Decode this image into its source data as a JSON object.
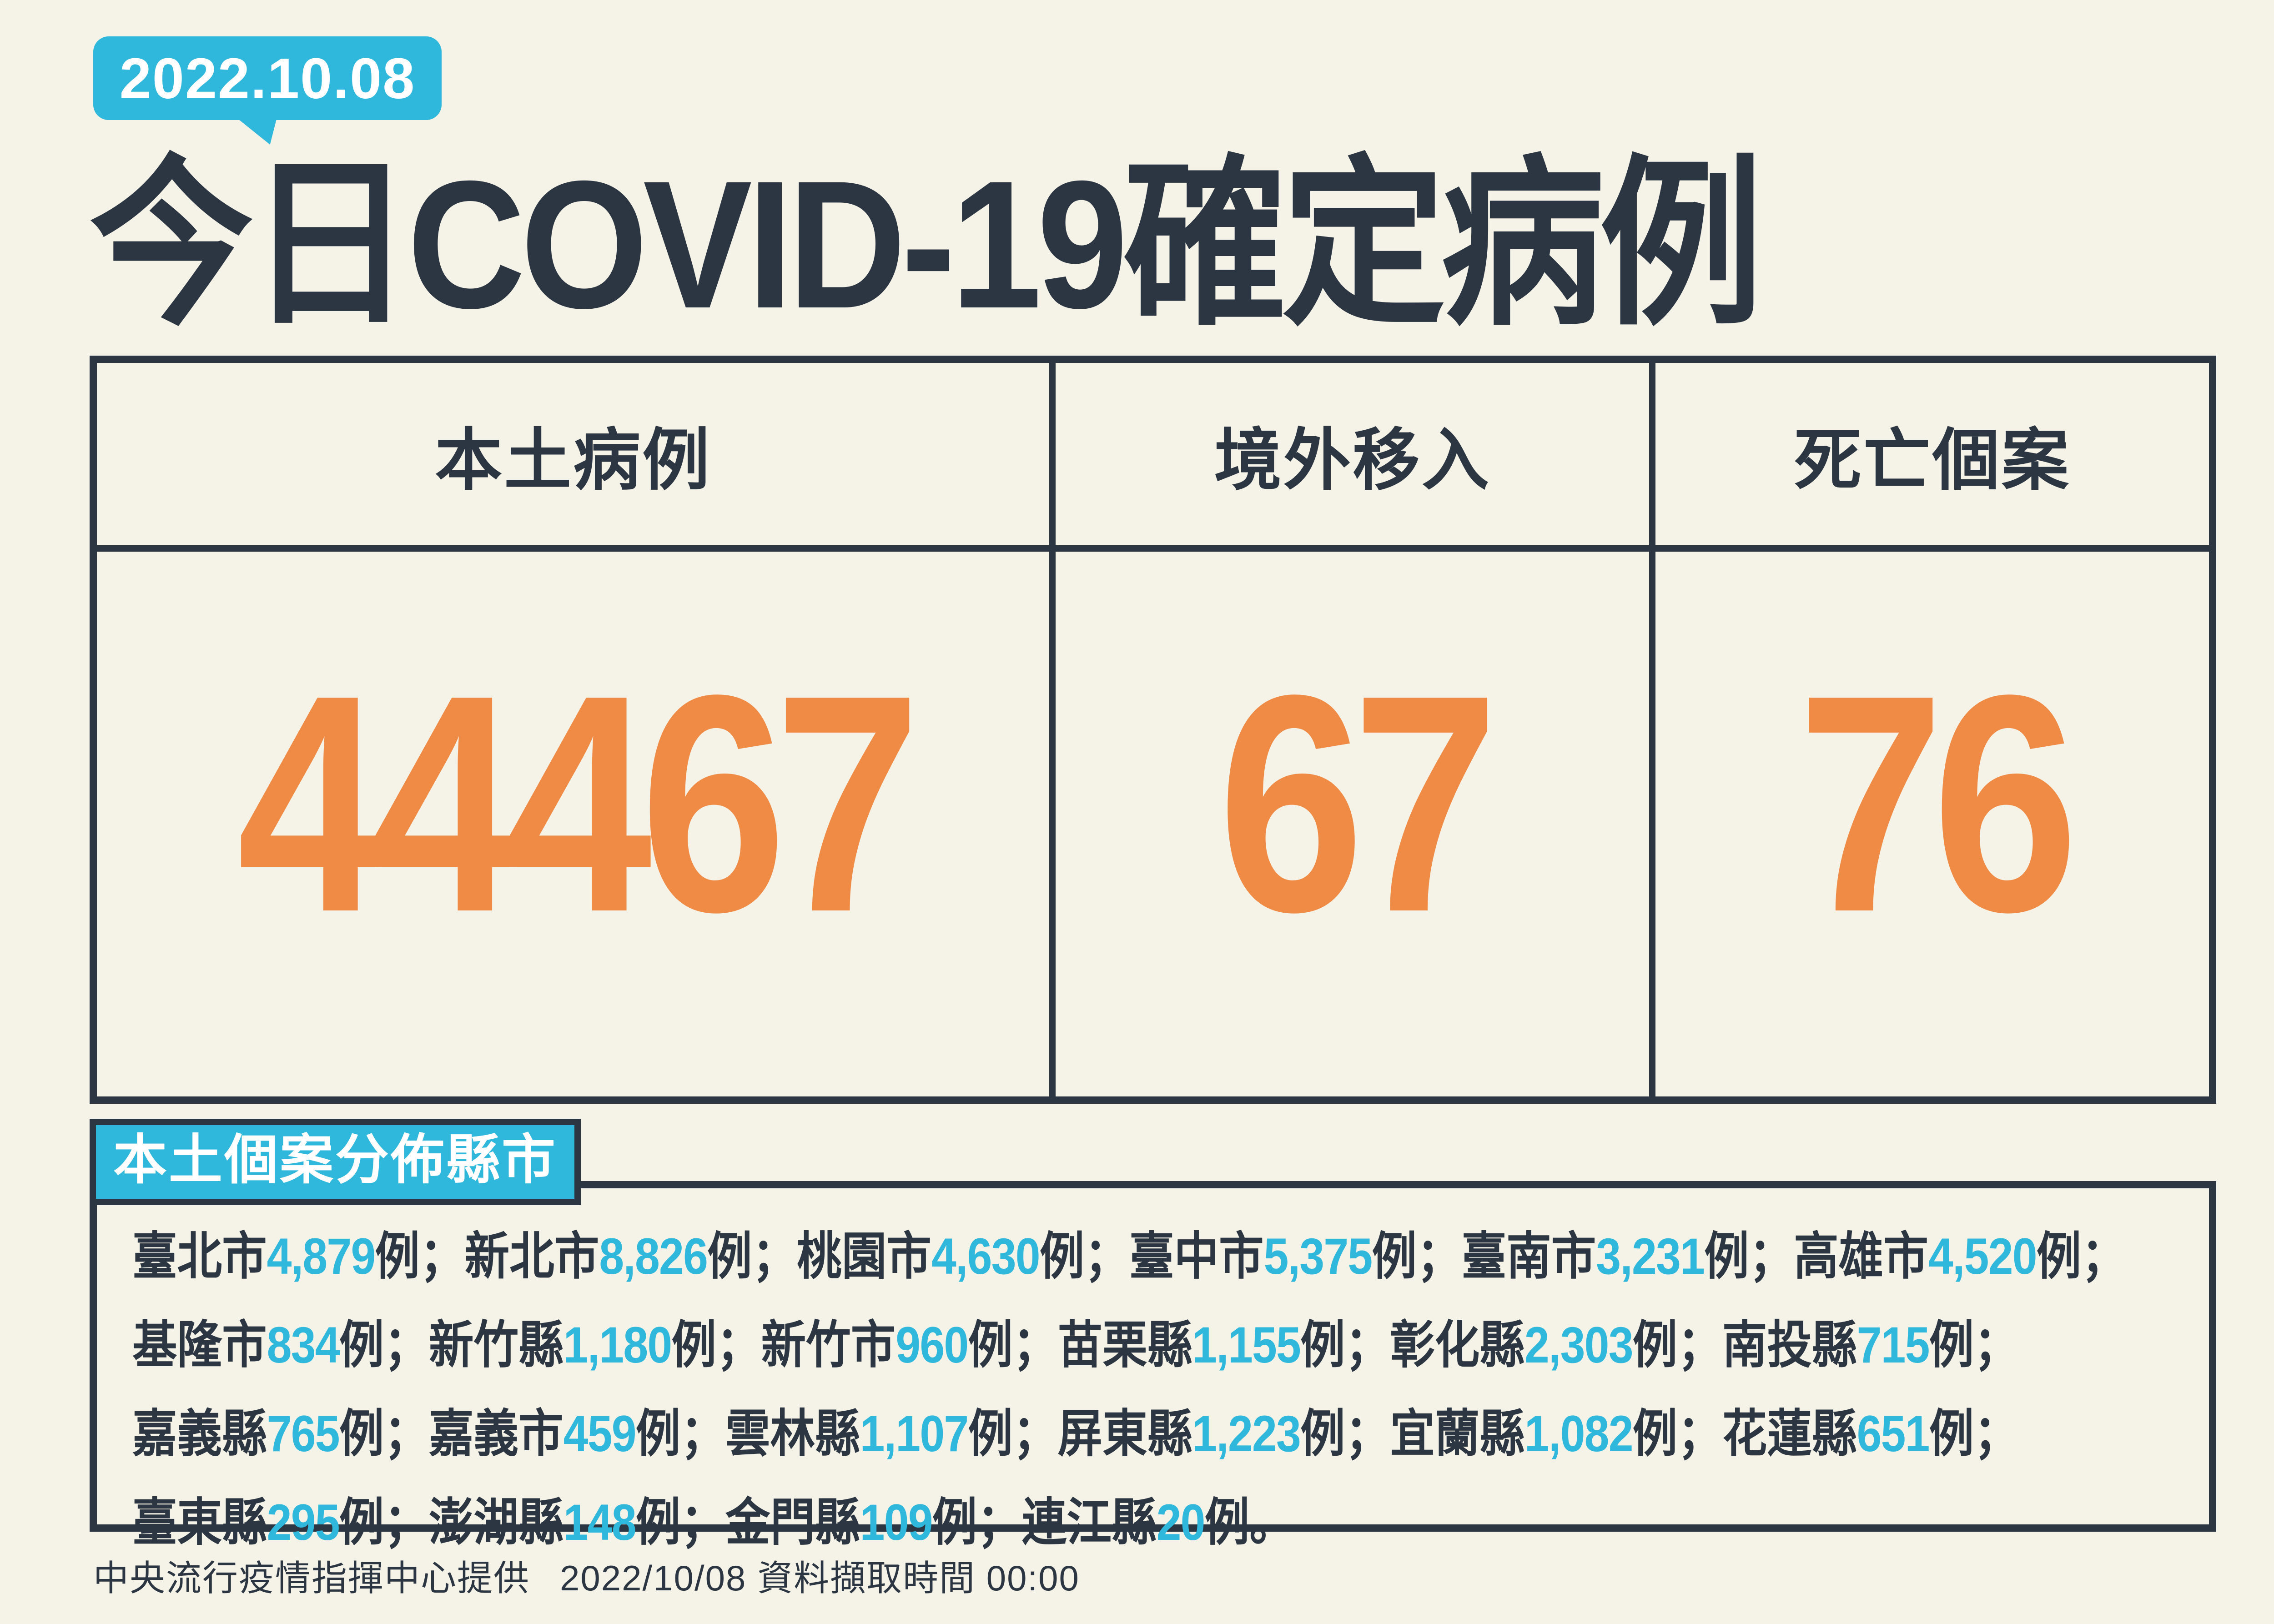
{
  "colors": {
    "background": "#f5f2e7",
    "navy": "#2b3642",
    "cyan": "#2fb8db",
    "orange": "#ef8b45",
    "white": "#ffffff"
  },
  "badge": {
    "date": "2022.10.08"
  },
  "title": "今日COVID-19確定病例",
  "summary_table": {
    "columns": [
      {
        "label": "本土病例",
        "value": "44467"
      },
      {
        "label": "境外移入",
        "value": "67"
      },
      {
        "label": "死亡個案",
        "value": "76"
      }
    ]
  },
  "distribution": {
    "tag": "本土個案分佈縣市",
    "unit_suffix": "例",
    "separator": "；",
    "terminator": "。",
    "lines": [
      [
        {
          "name": "臺北市",
          "cases": "4,879"
        },
        {
          "name": "新北市",
          "cases": "8,826"
        },
        {
          "name": "桃園市",
          "cases": "4,630"
        },
        {
          "name": "臺中市",
          "cases": "5,375"
        },
        {
          "name": "臺南市",
          "cases": "3,231"
        },
        {
          "name": "高雄市",
          "cases": "4,520"
        }
      ],
      [
        {
          "name": "基隆市",
          "cases": "834"
        },
        {
          "name": "新竹縣",
          "cases": "1,180"
        },
        {
          "name": "新竹市",
          "cases": "960"
        },
        {
          "name": "苗栗縣",
          "cases": "1,155"
        },
        {
          "name": "彰化縣",
          "cases": "2,303"
        },
        {
          "name": "南投縣",
          "cases": "715"
        }
      ],
      [
        {
          "name": "嘉義縣",
          "cases": "765"
        },
        {
          "name": "嘉義市",
          "cases": "459"
        },
        {
          "name": "雲林縣",
          "cases": "1,107"
        },
        {
          "name": "屏東縣",
          "cases": "1,223"
        },
        {
          "name": "宜蘭縣",
          "cases": "1,082"
        },
        {
          "name": "花蓮縣",
          "cases": "651"
        }
      ],
      [
        {
          "name": "臺東縣",
          "cases": "295"
        },
        {
          "name": "澎湖縣",
          "cases": "148"
        },
        {
          "name": "金門縣",
          "cases": "109"
        },
        {
          "name": "連江縣",
          "cases": "20"
        }
      ]
    ]
  },
  "footer": {
    "source": "中央流行疫情指揮中心提供",
    "captured": "2022/10/08 資料擷取時間 00:00"
  },
  "chart_data": {
    "type": "table",
    "title": "今日COVID-19確定病例",
    "date": "2022.10.08",
    "summary": {
      "categories": [
        "本土病例",
        "境外移入",
        "死亡個案"
      ],
      "values": [
        44467,
        67,
        76
      ]
    },
    "local_case_distribution": {
      "regions": [
        "臺北市",
        "新北市",
        "桃園市",
        "臺中市",
        "臺南市",
        "高雄市",
        "基隆市",
        "新竹縣",
        "新竹市",
        "苗栗縣",
        "彰化縣",
        "南投縣",
        "嘉義縣",
        "嘉義市",
        "雲林縣",
        "屏東縣",
        "宜蘭縣",
        "花蓮縣",
        "臺東縣",
        "澎湖縣",
        "金門縣",
        "連江縣"
      ],
      "values": [
        4879,
        8826,
        4630,
        5375,
        3231,
        4520,
        834,
        1180,
        960,
        1155,
        2303,
        715,
        765,
        459,
        1107,
        1223,
        1082,
        651,
        295,
        148,
        109,
        20
      ]
    }
  }
}
